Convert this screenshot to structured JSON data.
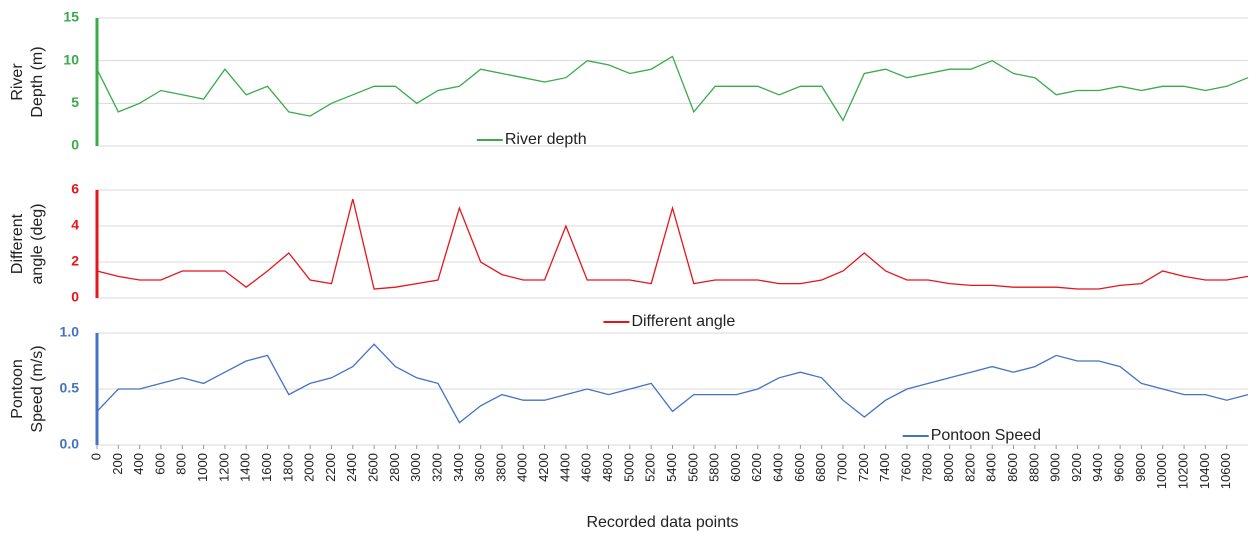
{
  "chart_data": [
    {
      "type": "line",
      "ylabel": [
        "River",
        "Depth (m)"
      ],
      "xlim": [
        0,
        10800
      ],
      "ylim": [
        0,
        15
      ],
      "yticks": [
        0,
        5,
        10,
        15
      ],
      "grid": true,
      "legend": "lower center-left",
      "x": [
        0,
        200,
        400,
        600,
        800,
        1000,
        1200,
        1400,
        1600,
        1800,
        2000,
        2200,
        2400,
        2600,
        2800,
        3000,
        3200,
        3400,
        3600,
        3800,
        4000,
        4200,
        4400,
        4600,
        4800,
        5000,
        5200,
        5400,
        5600,
        5800,
        6000,
        6200,
        6400,
        6600,
        6800,
        7000,
        7200,
        7400,
        7600,
        7800,
        8000,
        8200,
        8400,
        8600,
        8800,
        9000,
        9200,
        9400,
        9600,
        9800,
        10000,
        10200,
        10400,
        10600,
        10800
      ],
      "series": [
        {
          "name": "River depth",
          "color": "#3aaa4a",
          "values": [
            9,
            4,
            5,
            6.5,
            6,
            5.5,
            9,
            6,
            7,
            4,
            3.5,
            5,
            6,
            7,
            7,
            5,
            6.5,
            7,
            9,
            8.5,
            8,
            7.5,
            8,
            10,
            9.5,
            8.5,
            9,
            10.5,
            4,
            7,
            7,
            7,
            6,
            7,
            7,
            3,
            8.5,
            9,
            8,
            8.5,
            9,
            9,
            10,
            8.5,
            8,
            6,
            6.5,
            6.5,
            7,
            6.5,
            7,
            7,
            6.5,
            7,
            8
          ]
        }
      ]
    },
    {
      "type": "line",
      "ylabel": [
        "Different",
        "angle (deg)"
      ],
      "xlim": [
        0,
        10800
      ],
      "ylim": [
        0,
        6
      ],
      "yticks": [
        0,
        2,
        4,
        6
      ],
      "grid": true,
      "legend": "below center",
      "x": [
        0,
        200,
        400,
        600,
        800,
        1000,
        1200,
        1400,
        1600,
        1800,
        2000,
        2200,
        2400,
        2600,
        2800,
        3000,
        3200,
        3400,
        3600,
        3800,
        4000,
        4200,
        4400,
        4600,
        4800,
        5000,
        5200,
        5400,
        5600,
        5800,
        6000,
        6200,
        6400,
        6600,
        6800,
        7000,
        7200,
        7400,
        7600,
        7800,
        8000,
        8200,
        8400,
        8600,
        8800,
        9000,
        9200,
        9400,
        9600,
        9800,
        10000,
        10200,
        10400,
        10600,
        10800
      ],
      "series": [
        {
          "name": "Different angle",
          "color": "#e8141c",
          "values": [
            1.5,
            1.2,
            1,
            1,
            1.5,
            1.5,
            1.5,
            0.6,
            1.5,
            2.5,
            1,
            0.8,
            5.5,
            0.5,
            0.6,
            0.8,
            1,
            5,
            2,
            1.3,
            1,
            1,
            4,
            1,
            1,
            1,
            0.8,
            5,
            0.8,
            1,
            1,
            1,
            0.8,
            0.8,
            1,
            1.5,
            2.5,
            1.5,
            1,
            1,
            0.8,
            0.7,
            0.7,
            0.6,
            0.6,
            0.6,
            0.5,
            0.5,
            0.7,
            0.8,
            1.5,
            1.2,
            1,
            1,
            1.2
          ]
        }
      ]
    },
    {
      "type": "line",
      "ylabel": [
        "Pontoon",
        "Speed (m/s)"
      ],
      "xlabel": "Recorded data points",
      "xlim": [
        0,
        10800
      ],
      "ylim": [
        0,
        1
      ],
      "yticks": [
        {
          "value": 0,
          "label": "0.0"
        },
        {
          "value": 0.5,
          "label": "0.5"
        },
        {
          "value": 1,
          "label": "1.0"
        }
      ],
      "grid": true,
      "legend": "lower right",
      "xticks": [
        0,
        200,
        400,
        600,
        800,
        1000,
        1200,
        1400,
        1600,
        1800,
        2000,
        2200,
        2400,
        2600,
        2800,
        3000,
        3200,
        3400,
        3600,
        3800,
        4000,
        4200,
        4400,
        4600,
        4800,
        5000,
        5200,
        5400,
        5600,
        5800,
        6000,
        6200,
        6400,
        6600,
        6800,
        7000,
        7200,
        7400,
        7600,
        7800,
        8000,
        8200,
        8400,
        8600,
        8800,
        9000,
        9200,
        9400,
        9600,
        9800,
        10000,
        10200,
        10400,
        10600
      ],
      "x": [
        0,
        200,
        400,
        600,
        800,
        1000,
        1200,
        1400,
        1600,
        1800,
        2000,
        2200,
        2400,
        2600,
        2800,
        3000,
        3200,
        3400,
        3600,
        3800,
        4000,
        4200,
        4400,
        4600,
        4800,
        5000,
        5200,
        5400,
        5600,
        5800,
        6000,
        6200,
        6400,
        6600,
        6800,
        7000,
        7200,
        7400,
        7600,
        7800,
        8000,
        8200,
        8400,
        8600,
        8800,
        9000,
        9200,
        9400,
        9600,
        9800,
        10000,
        10200,
        10400,
        10600,
        10800
      ],
      "series": [
        {
          "name": "Pontoon Speed",
          "color": "#4472c4",
          "values": [
            0.3,
            0.5,
            0.5,
            0.55,
            0.6,
            0.55,
            0.65,
            0.75,
            0.8,
            0.45,
            0.55,
            0.6,
            0.7,
            0.9,
            0.7,
            0.6,
            0.55,
            0.2,
            0.35,
            0.45,
            0.4,
            0.4,
            0.45,
            0.5,
            0.45,
            0.5,
            0.55,
            0.3,
            0.45,
            0.45,
            0.45,
            0.5,
            0.6,
            0.65,
            0.6,
            0.4,
            0.25,
            0.4,
            0.5,
            0.55,
            0.6,
            0.65,
            0.7,
            0.65,
            0.7,
            0.8,
            0.75,
            0.75,
            0.7,
            0.55,
            0.5,
            0.45,
            0.45,
            0.4,
            0.45
          ]
        }
      ]
    }
  ]
}
